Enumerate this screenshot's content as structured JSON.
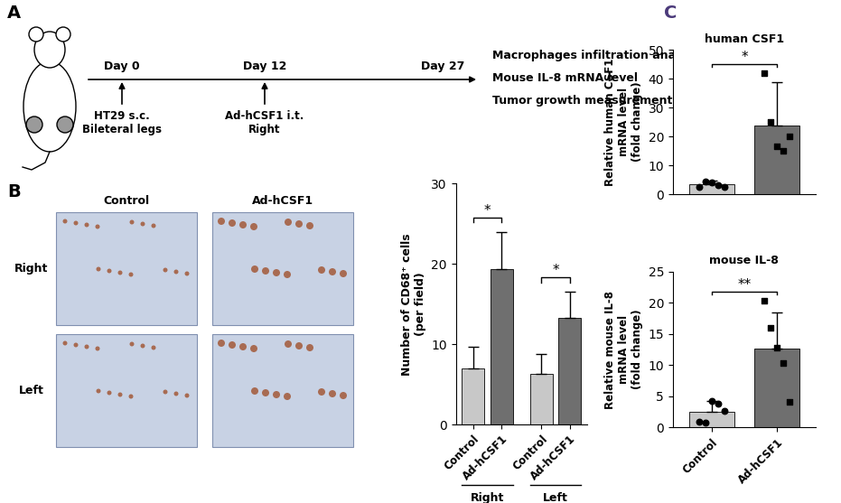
{
  "panel_labels": [
    "A",
    "B",
    "C"
  ],
  "timeline": {
    "events": [
      {
        "day": "Day 0",
        "lines": [
          "HT29 s.c.",
          "Bileteral legs"
        ]
      },
      {
        "day": "Day 12",
        "lines": [
          "Ad-hCSF1 i.t.",
          "Right"
        ]
      },
      {
        "day": "Day 27",
        "lines": []
      }
    ],
    "endpoints": [
      "Macrophages infiltration analysis",
      "Mouse IL-8 mRNA level",
      "Tumor growth measurement"
    ]
  },
  "images": {
    "columns": [
      "Control",
      "Ad-hCSF1"
    ],
    "rows": [
      "Right",
      "Left"
    ]
  },
  "chart_data": [
    {
      "type": "grouped_bar",
      "ylabel": "Number of CD68⁺ cells\n(per field)",
      "categories": [
        "Control",
        "Ad-hCSF1"
      ],
      "colors": [
        "#c8c8c8",
        "#6f6f6f"
      ],
      "groups": [
        {
          "name": "Right",
          "values": [
            7.0,
            19.3
          ],
          "errors": [
            2.7,
            4.7
          ],
          "significance": "*"
        },
        {
          "name": "Left",
          "values": [
            6.3,
            13.3
          ],
          "errors": [
            2.5,
            3.2
          ],
          "significance": "*"
        }
      ],
      "ylim": [
        0,
        30
      ],
      "yticks": [
        0,
        10,
        20,
        30
      ]
    },
    {
      "type": "bar",
      "title": "human CSF1",
      "ylabel": "Relative human CSF1\nmRNA level\n(fold change)",
      "categories": [
        null,
        null
      ],
      "values": [
        3.3,
        23.7
      ],
      "errors": [
        1.3,
        15.0
      ],
      "points": [
        [
          2.5,
          4.5,
          4.0,
          3.0,
          2.5
        ],
        [
          42.0,
          25.0,
          16.5,
          15.0,
          20.0
        ]
      ],
      "colors": [
        "#c8c8c8",
        "#6f6f6f"
      ],
      "significance": "*",
      "ylim": [
        0,
        50
      ],
      "yticks": [
        0,
        10,
        20,
        30,
        40,
        50
      ],
      "tick_labels": "y"
    },
    {
      "type": "bar",
      "title": "mouse IL-8",
      "ylabel": "Relative mouse IL-8\nmRNA level\n(fold change)",
      "categories": [
        "Control",
        "Ad-hCSF1"
      ],
      "values": [
        2.5,
        12.7
      ],
      "errors": [
        1.8,
        5.7
      ],
      "points": [
        [
          1.0,
          0.8,
          4.2,
          3.9,
          2.6
        ],
        [
          20.3,
          16.0,
          12.8,
          10.3,
          4.1
        ]
      ],
      "colors": [
        "#c8c8c8",
        "#6f6f6f"
      ],
      "significance": "**",
      "ylim": [
        0,
        25
      ],
      "yticks": [
        0,
        5,
        10,
        15,
        20,
        25
      ]
    }
  ]
}
